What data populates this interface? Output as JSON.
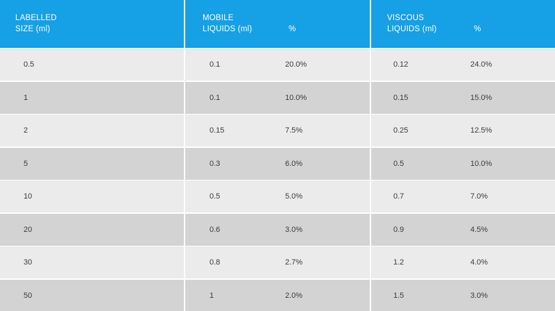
{
  "chart_data": {
    "type": "table",
    "columns": [
      {
        "group": "LABELLED\nSIZE (ml)",
        "sub": ""
      },
      {
        "group": "MOBILE\nLIQUIDS (ml)",
        "sub": "%"
      },
      {
        "group": "VISCOUS\nLIQUIDS (ml)",
        "sub": "%"
      }
    ],
    "rows": [
      {
        "size": "0.5",
        "mobile": "0.1",
        "mobile_pct": "20.0%",
        "viscous": "0.12",
        "viscous_pct": "24.0%"
      },
      {
        "size": "1",
        "mobile": "0.1",
        "mobile_pct": "10.0%",
        "viscous": "0.15",
        "viscous_pct": "15.0%"
      },
      {
        "size": "2",
        "mobile": "0.15",
        "mobile_pct": "7.5%",
        "viscous": "0.25",
        "viscous_pct": "12.5%"
      },
      {
        "size": "5",
        "mobile": "0.3",
        "mobile_pct": "6.0%",
        "viscous": "0.5",
        "viscous_pct": "10.0%"
      },
      {
        "size": "10",
        "mobile": "0.5",
        "mobile_pct": "5.0%",
        "viscous": "0.7",
        "viscous_pct": "7.0%"
      },
      {
        "size": "20",
        "mobile": "0.6",
        "mobile_pct": "3.0%",
        "viscous": "0.9",
        "viscous_pct": "4.5%"
      },
      {
        "size": "30",
        "mobile": "0.8",
        "mobile_pct": "2.7%",
        "viscous": "1.2",
        "viscous_pct": "4.0%"
      },
      {
        "size": "50",
        "mobile": "1",
        "mobile_pct": "2.0%",
        "viscous": "1.5",
        "viscous_pct": "3.0%"
      }
    ],
    "colors": {
      "header_bg": "#16a0e6",
      "header_text": "#ffffff",
      "row_light": "#ebebeb",
      "row_dark": "#d3d3d3",
      "cell_text": "#3a3a3a",
      "divider": "#ffffff"
    }
  }
}
